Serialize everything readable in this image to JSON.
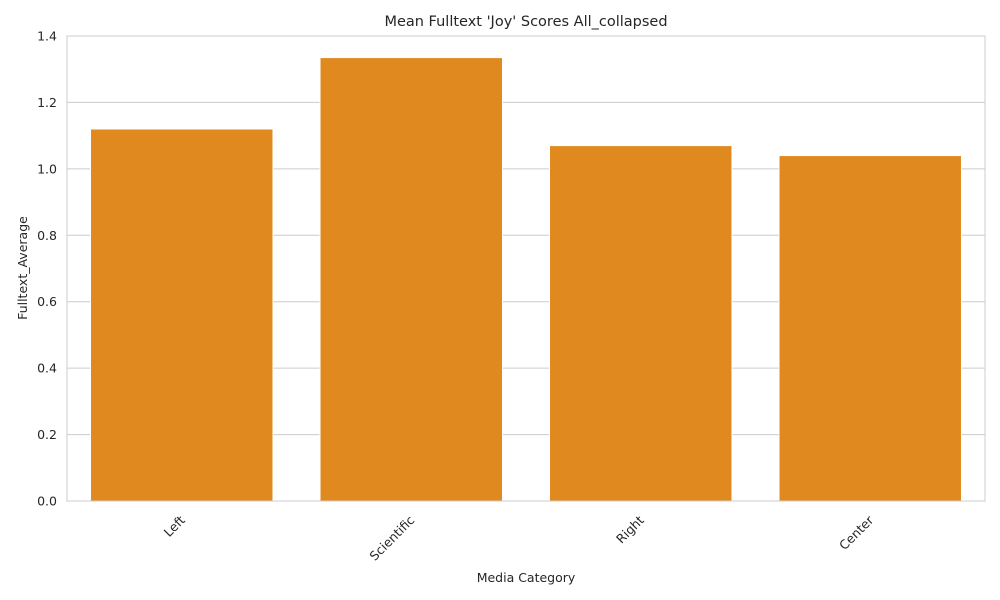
{
  "chart_data": {
    "type": "bar",
    "title": "Mean Fulltext 'Joy' Scores All_collapsed",
    "xlabel": "Media Category",
    "ylabel": "Fulltext_Average",
    "categories": [
      "Left",
      "Scientific",
      "Right",
      "Center"
    ],
    "values": [
      1.12,
      1.335,
      1.07,
      1.04
    ],
    "ylim": [
      0,
      1.4
    ],
    "yticks": [
      "0.0",
      "0.2",
      "0.4",
      "0.6",
      "0.8",
      "1.0",
      "1.2",
      "1.4"
    ],
    "grid": "horizontal",
    "bar_color": "#e0891e",
    "grid_color": "#cccccc",
    "spine_color": "#cccccc"
  }
}
